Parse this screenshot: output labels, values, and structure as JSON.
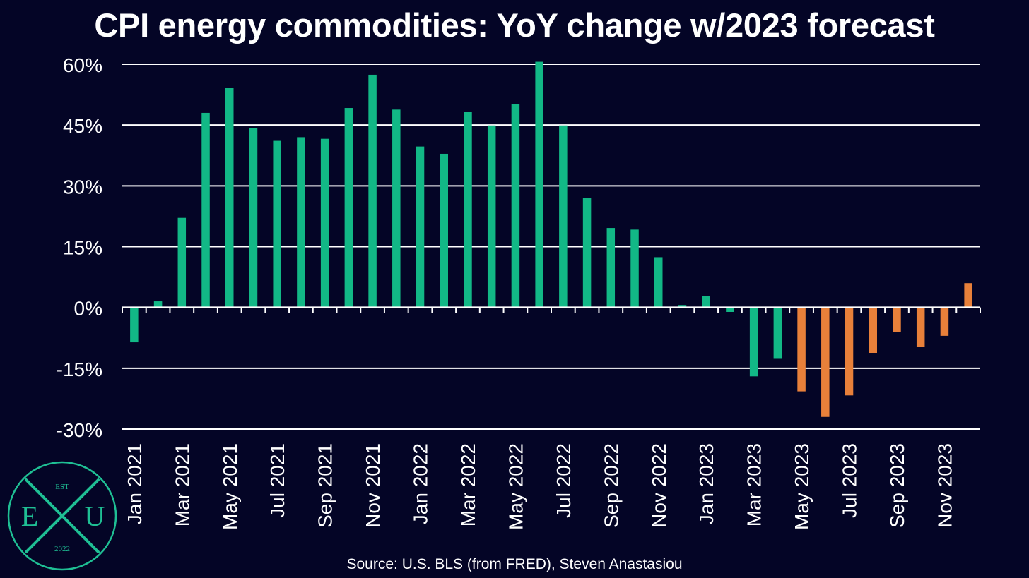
{
  "title": "CPI energy commodities: YoY change w/2023 forecast",
  "source": "Source: U.S. BLS (from FRED), Steven Anastasiou",
  "logo": {
    "top_text": "EST",
    "left_letter": "E",
    "center_letter": "X",
    "right_letter": "U",
    "bottom_text": "2022"
  },
  "colors": {
    "background": "#040526",
    "actual": "#12b886",
    "forecast": "#e8803a",
    "grid": "#ffffff",
    "logo": "#1fbf94"
  },
  "chart_data": {
    "type": "bar",
    "title": "CPI energy commodities: YoY change w/2023 forecast",
    "xlabel": "",
    "ylabel": "",
    "ylim": [
      -30,
      60
    ],
    "yticks": [
      "60%",
      "45%",
      "30%",
      "15%",
      "0%",
      "-15%",
      "-30%"
    ],
    "ytick_values": [
      60,
      45,
      30,
      15,
      0,
      -15,
      -30
    ],
    "grid": true,
    "categories": [
      "Jan 2021",
      "Feb 2021",
      "Mar 2021",
      "Apr 2021",
      "May 2021",
      "Jun 2021",
      "Jul 2021",
      "Aug 2021",
      "Sep 2021",
      "Oct 2021",
      "Nov 2021",
      "Dec 2021",
      "Jan 2022",
      "Feb 2022",
      "Mar 2022",
      "Apr 2022",
      "May 2022",
      "Jun 2022",
      "Jul 2022",
      "Aug 2022",
      "Sep 2022",
      "Oct 2022",
      "Nov 2022",
      "Dec 2022",
      "Jan 2023",
      "Feb 2023",
      "Mar 2023",
      "Apr 2023",
      "May 2023",
      "Jun 2023",
      "Jul 2023",
      "Aug 2023",
      "Sep 2023",
      "Oct 2023",
      "Nov 2023",
      "Dec 2023"
    ],
    "tick_labels": [
      "Jan 2021",
      "Mar 2021",
      "May 2021",
      "Jul 2021",
      "Sep 2021",
      "Nov 2021",
      "Jan 2022",
      "Mar 2022",
      "May 2022",
      "Jul 2022",
      "Sep 2022",
      "Nov 2022",
      "Jan 2023",
      "Mar 2023",
      "May 2023",
      "Jul 2023",
      "Sep 2023",
      "Nov 2023"
    ],
    "series": [
      {
        "values": [
          -8.6,
          1.5,
          22.1,
          48.0,
          54.2,
          44.2,
          41.1,
          42.0,
          41.6,
          49.2,
          57.4,
          48.8,
          39.7,
          37.9,
          48.3,
          44.9,
          50.1,
          60.6,
          44.9,
          27.0,
          19.6,
          19.2,
          12.4,
          0.6,
          2.9,
          -1.1,
          -17.0,
          -12.5,
          -20.7,
          -27.0,
          -21.7,
          -11.2,
          -6.0,
          -9.8,
          -7.0,
          6.0
        ]
      }
    ],
    "forecast_start_index": 28
  }
}
